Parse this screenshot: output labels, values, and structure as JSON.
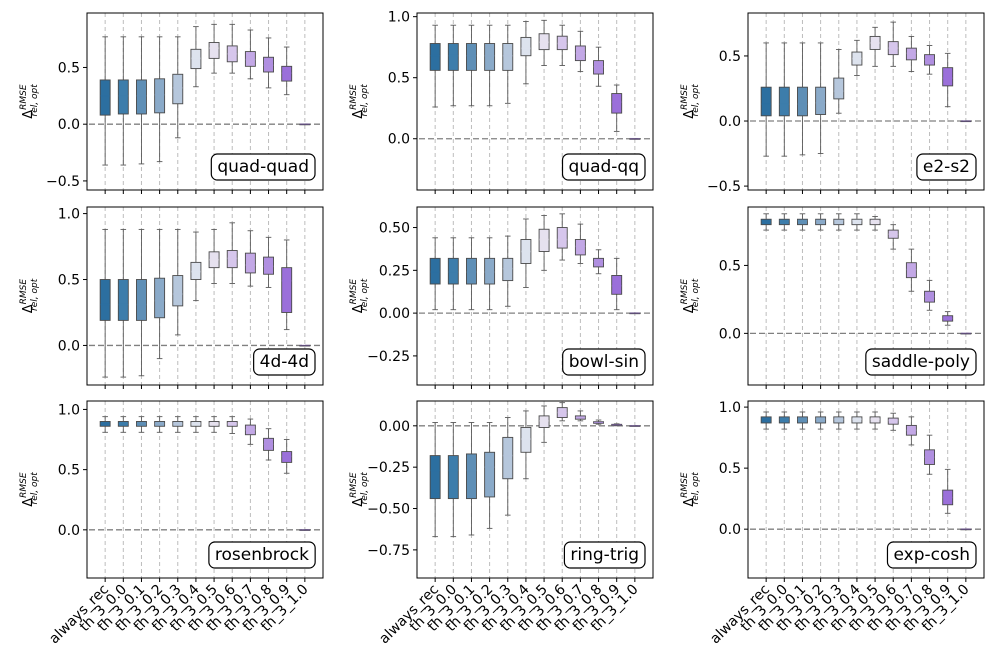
{
  "figure": {
    "ylabel_base": "Δ",
    "ylabel_sup": "RMSE",
    "ylabel_sub": "rel, opt",
    "categories": [
      "always_rec",
      "th_3_0.0",
      "th_3_0.1",
      "th_3_0.2",
      "th_3_0.3",
      "th_3_0.4",
      "th_3_0.5",
      "th_3_0.6",
      "th_3_0.7",
      "th_3_0.8",
      "th_3_0.9",
      "th_3_1.0"
    ],
    "box_colors": [
      "#2c6fa0",
      "#3d7dab",
      "#5f8fb6",
      "#8aaac9",
      "#b6c7dc",
      "#dde3ee",
      "#e6e1ef",
      "#d6c6ec",
      "#c3a8e6",
      "#b08fe0",
      "#9b70da",
      "#8a58d4"
    ]
  },
  "chart_data": [
    {
      "type": "box",
      "title": "quad-quad",
      "ylim": [
        -0.58,
        0.98
      ],
      "yticks": [
        -0.5,
        0.0,
        0.5
      ],
      "ytick_labels": [
        "−0.5",
        "0.0",
        "0.5"
      ],
      "boxes": [
        {
          "whislo": -0.36,
          "q1": 0.08,
          "med": 0.25,
          "q3": 0.39,
          "whishi": 0.77
        },
        {
          "whislo": -0.36,
          "q1": 0.09,
          "med": 0.25,
          "q3": 0.39,
          "whishi": 0.77
        },
        {
          "whislo": -0.35,
          "q1": 0.09,
          "med": 0.25,
          "q3": 0.39,
          "whishi": 0.77
        },
        {
          "whislo": -0.33,
          "q1": 0.1,
          "med": 0.26,
          "q3": 0.4,
          "whishi": 0.77
        },
        {
          "whislo": -0.12,
          "q1": 0.18,
          "med": 0.32,
          "q3": 0.44,
          "whishi": 0.77
        },
        {
          "whislo": 0.33,
          "q1": 0.49,
          "med": 0.58,
          "q3": 0.66,
          "whishi": 0.86
        },
        {
          "whislo": 0.45,
          "q1": 0.58,
          "med": 0.67,
          "q3": 0.72,
          "whishi": 0.88
        },
        {
          "whislo": 0.45,
          "q1": 0.55,
          "med": 0.62,
          "q3": 0.69,
          "whishi": 0.88
        },
        {
          "whislo": 0.4,
          "q1": 0.51,
          "med": 0.57,
          "q3": 0.64,
          "whishi": 0.83
        },
        {
          "whislo": 0.32,
          "q1": 0.46,
          "med": 0.52,
          "q3": 0.59,
          "whishi": 0.76
        },
        {
          "whislo": 0.26,
          "q1": 0.38,
          "med": 0.45,
          "q3": 0.51,
          "whishi": 0.68
        },
        {
          "whislo": 0.0,
          "q1": 0.0,
          "med": 0.0,
          "q3": 0.0,
          "whishi": 0.0
        }
      ]
    },
    {
      "type": "box",
      "title": "quad-qq",
      "ylim": [
        -0.42,
        1.03
      ],
      "yticks": [
        0.0,
        0.5,
        1.0
      ],
      "ytick_labels": [
        "0.0",
        "0.5",
        "1.0"
      ],
      "boxes": [
        {
          "whislo": 0.26,
          "q1": 0.56,
          "med": 0.68,
          "q3": 0.78,
          "whishi": 0.93
        },
        {
          "whislo": 0.27,
          "q1": 0.56,
          "med": 0.68,
          "q3": 0.78,
          "whishi": 0.93
        },
        {
          "whislo": 0.27,
          "q1": 0.56,
          "med": 0.68,
          "q3": 0.78,
          "whishi": 0.93
        },
        {
          "whislo": 0.27,
          "q1": 0.56,
          "med": 0.68,
          "q3": 0.78,
          "whishi": 0.93
        },
        {
          "whislo": 0.29,
          "q1": 0.56,
          "med": 0.68,
          "q3": 0.78,
          "whishi": 0.93
        },
        {
          "whislo": 0.45,
          "q1": 0.68,
          "med": 0.74,
          "q3": 0.83,
          "whishi": 0.96
        },
        {
          "whislo": 0.6,
          "q1": 0.73,
          "med": 0.79,
          "q3": 0.86,
          "whishi": 0.97
        },
        {
          "whislo": 0.6,
          "q1": 0.73,
          "med": 0.78,
          "q3": 0.84,
          "whishi": 0.93
        },
        {
          "whislo": 0.55,
          "q1": 0.64,
          "med": 0.7,
          "q3": 0.76,
          "whishi": 0.88
        },
        {
          "whislo": 0.43,
          "q1": 0.53,
          "med": 0.59,
          "q3": 0.64,
          "whishi": 0.75
        },
        {
          "whislo": 0.06,
          "q1": 0.21,
          "med": 0.3,
          "q3": 0.37,
          "whishi": 0.44
        },
        {
          "whislo": 0.0,
          "q1": 0.0,
          "med": 0.0,
          "q3": 0.0,
          "whishi": 0.0
        }
      ]
    },
    {
      "type": "box",
      "title": "e2-s2",
      "ylim": [
        -0.53,
        0.83
      ],
      "yticks": [
        -0.5,
        0.0,
        0.5
      ],
      "ytick_labels": [
        "−0.5",
        "0.0",
        "0.5"
      ],
      "boxes": [
        {
          "whislo": -0.27,
          "q1": 0.04,
          "med": 0.13,
          "q3": 0.26,
          "whishi": 0.6
        },
        {
          "whislo": -0.27,
          "q1": 0.04,
          "med": 0.13,
          "q3": 0.26,
          "whishi": 0.6
        },
        {
          "whislo": -0.26,
          "q1": 0.04,
          "med": 0.13,
          "q3": 0.26,
          "whishi": 0.6
        },
        {
          "whislo": -0.25,
          "q1": 0.05,
          "med": 0.14,
          "q3": 0.26,
          "whishi": 0.6
        },
        {
          "whislo": 0.06,
          "q1": 0.17,
          "med": 0.23,
          "q3": 0.33,
          "whishi": 0.55
        },
        {
          "whislo": 0.35,
          "q1": 0.43,
          "med": 0.48,
          "q3": 0.53,
          "whishi": 0.62
        },
        {
          "whislo": 0.42,
          "q1": 0.55,
          "med": 0.6,
          "q3": 0.65,
          "whishi": 0.72
        },
        {
          "whislo": 0.42,
          "q1": 0.51,
          "med": 0.56,
          "q3": 0.61,
          "whishi": 0.76
        },
        {
          "whislo": 0.38,
          "q1": 0.47,
          "med": 0.52,
          "q3": 0.56,
          "whishi": 0.65
        },
        {
          "whislo": 0.36,
          "q1": 0.43,
          "med": 0.47,
          "q3": 0.51,
          "whishi": 0.58
        },
        {
          "whislo": 0.11,
          "q1": 0.27,
          "med": 0.33,
          "q3": 0.41,
          "whishi": 0.52
        },
        {
          "whislo": 0.0,
          "q1": 0.0,
          "med": 0.0,
          "q3": 0.0,
          "whishi": 0.0
        }
      ]
    },
    {
      "type": "box",
      "title": "4d-4d",
      "ylim": [
        -0.3,
        1.05
      ],
      "yticks": [
        0.0,
        0.5,
        1.0
      ],
      "ytick_labels": [
        "0.0",
        "0.5",
        "1.0"
      ],
      "boxes": [
        {
          "whislo": -0.24,
          "q1": 0.19,
          "med": 0.31,
          "q3": 0.5,
          "whishi": 0.88
        },
        {
          "whislo": -0.24,
          "q1": 0.19,
          "med": 0.31,
          "q3": 0.5,
          "whishi": 0.88
        },
        {
          "whislo": -0.23,
          "q1": 0.19,
          "med": 0.31,
          "q3": 0.5,
          "whishi": 0.88
        },
        {
          "whislo": -0.1,
          "q1": 0.21,
          "med": 0.34,
          "q3": 0.51,
          "whishi": 0.88
        },
        {
          "whislo": 0.08,
          "q1": 0.3,
          "med": 0.39,
          "q3": 0.53,
          "whishi": 0.88
        },
        {
          "whislo": 0.34,
          "q1": 0.5,
          "med": 0.56,
          "q3": 0.63,
          "whishi": 0.86
        },
        {
          "whislo": 0.47,
          "q1": 0.59,
          "med": 0.65,
          "q3": 0.71,
          "whishi": 0.88
        },
        {
          "whislo": 0.47,
          "q1": 0.59,
          "med": 0.66,
          "q3": 0.72,
          "whishi": 0.93
        },
        {
          "whislo": 0.45,
          "q1": 0.55,
          "med": 0.61,
          "q3": 0.7,
          "whishi": 0.87
        },
        {
          "whislo": 0.44,
          "q1": 0.54,
          "med": 0.6,
          "q3": 0.67,
          "whishi": 0.82
        },
        {
          "whislo": 0.12,
          "q1": 0.25,
          "med": 0.49,
          "q3": 0.59,
          "whishi": 0.8
        },
        {
          "whislo": 0.0,
          "q1": 0.0,
          "med": 0.0,
          "q3": 0.0,
          "whishi": 0.0
        }
      ]
    },
    {
      "type": "box",
      "title": "bowl-sin",
      "ylim": [
        -0.42,
        0.62
      ],
      "yticks": [
        -0.25,
        0.0,
        0.25,
        0.5
      ],
      "ytick_labels": [
        "−0.25",
        "0.00",
        "0.25",
        "0.50"
      ],
      "boxes": [
        {
          "whislo": 0.02,
          "q1": 0.17,
          "med": 0.24,
          "q3": 0.32,
          "whishi": 0.44
        },
        {
          "whislo": 0.02,
          "q1": 0.17,
          "med": 0.24,
          "q3": 0.32,
          "whishi": 0.44
        },
        {
          "whislo": 0.02,
          "q1": 0.17,
          "med": 0.24,
          "q3": 0.32,
          "whishi": 0.44
        },
        {
          "whislo": 0.02,
          "q1": 0.17,
          "med": 0.24,
          "q3": 0.32,
          "whishi": 0.44
        },
        {
          "whislo": 0.04,
          "q1": 0.19,
          "med": 0.26,
          "q3": 0.32,
          "whishi": 0.45
        },
        {
          "whislo": 0.15,
          "q1": 0.29,
          "med": 0.36,
          "q3": 0.43,
          "whishi": 0.55
        },
        {
          "whislo": 0.25,
          "q1": 0.36,
          "med": 0.43,
          "q3": 0.49,
          "whishi": 0.57
        },
        {
          "whislo": 0.31,
          "q1": 0.38,
          "med": 0.43,
          "q3": 0.5,
          "whishi": 0.58
        },
        {
          "whislo": 0.29,
          "q1": 0.34,
          "med": 0.39,
          "q3": 0.43,
          "whishi": 0.52
        },
        {
          "whislo": 0.23,
          "q1": 0.27,
          "med": 0.3,
          "q3": 0.32,
          "whishi": 0.37
        },
        {
          "whislo": 0.02,
          "q1": 0.11,
          "med": 0.16,
          "q3": 0.22,
          "whishi": 0.32
        },
        {
          "whislo": 0.0,
          "q1": 0.0,
          "med": 0.0,
          "q3": 0.0,
          "whishi": 0.0
        }
      ]
    },
    {
      "type": "box",
      "title": "saddle-poly",
      "ylim": [
        -0.38,
        0.93
      ],
      "yticks": [
        0.0,
        0.5
      ],
      "ytick_labels": [
        "0.0",
        "0.5"
      ],
      "boxes": [
        {
          "whislo": 0.76,
          "q1": 0.8,
          "med": 0.83,
          "q3": 0.84,
          "whishi": 0.88
        },
        {
          "whislo": 0.76,
          "q1": 0.8,
          "med": 0.83,
          "q3": 0.84,
          "whishi": 0.88
        },
        {
          "whislo": 0.76,
          "q1": 0.8,
          "med": 0.83,
          "q3": 0.84,
          "whishi": 0.88
        },
        {
          "whislo": 0.76,
          "q1": 0.8,
          "med": 0.83,
          "q3": 0.84,
          "whishi": 0.88
        },
        {
          "whislo": 0.76,
          "q1": 0.8,
          "med": 0.83,
          "q3": 0.84,
          "whishi": 0.88
        },
        {
          "whislo": 0.76,
          "q1": 0.8,
          "med": 0.83,
          "q3": 0.84,
          "whishi": 0.88
        },
        {
          "whislo": 0.76,
          "q1": 0.8,
          "med": 0.82,
          "q3": 0.84,
          "whishi": 0.86
        },
        {
          "whislo": 0.62,
          "q1": 0.7,
          "med": 0.73,
          "q3": 0.76,
          "whishi": 0.8
        },
        {
          "whislo": 0.31,
          "q1": 0.41,
          "med": 0.47,
          "q3": 0.52,
          "whishi": 0.62
        },
        {
          "whislo": 0.17,
          "q1": 0.23,
          "med": 0.27,
          "q3": 0.31,
          "whishi": 0.39
        },
        {
          "whislo": 0.06,
          "q1": 0.09,
          "med": 0.11,
          "q3": 0.13,
          "whishi": 0.16
        },
        {
          "whislo": 0.0,
          "q1": 0.0,
          "med": 0.0,
          "q3": 0.0,
          "whishi": 0.0
        }
      ]
    },
    {
      "type": "box",
      "title": "rosenbrock",
      "ylim": [
        -0.4,
        1.07
      ],
      "yticks": [
        0.0,
        0.5,
        1.0
      ],
      "ytick_labels": [
        "0.0",
        "0.5",
        "1.0"
      ],
      "boxes": [
        {
          "whislo": 0.81,
          "q1": 0.86,
          "med": 0.88,
          "q3": 0.9,
          "whishi": 0.94
        },
        {
          "whislo": 0.81,
          "q1": 0.86,
          "med": 0.88,
          "q3": 0.9,
          "whishi": 0.94
        },
        {
          "whislo": 0.81,
          "q1": 0.86,
          "med": 0.88,
          "q3": 0.9,
          "whishi": 0.94
        },
        {
          "whislo": 0.81,
          "q1": 0.86,
          "med": 0.88,
          "q3": 0.9,
          "whishi": 0.94
        },
        {
          "whislo": 0.81,
          "q1": 0.86,
          "med": 0.88,
          "q3": 0.9,
          "whishi": 0.94
        },
        {
          "whislo": 0.81,
          "q1": 0.86,
          "med": 0.88,
          "q3": 0.9,
          "whishi": 0.94
        },
        {
          "whislo": 0.81,
          "q1": 0.86,
          "med": 0.88,
          "q3": 0.9,
          "whishi": 0.94
        },
        {
          "whislo": 0.8,
          "q1": 0.86,
          "med": 0.88,
          "q3": 0.9,
          "whishi": 0.94
        },
        {
          "whislo": 0.71,
          "q1": 0.79,
          "med": 0.83,
          "q3": 0.87,
          "whishi": 0.92
        },
        {
          "whislo": 0.58,
          "q1": 0.66,
          "med": 0.71,
          "q3": 0.76,
          "whishi": 0.84
        },
        {
          "whislo": 0.47,
          "q1": 0.56,
          "med": 0.61,
          "q3": 0.65,
          "whishi": 0.75
        },
        {
          "whislo": 0.0,
          "q1": 0.0,
          "med": 0.0,
          "q3": 0.0,
          "whishi": 0.0
        }
      ]
    },
    {
      "type": "box",
      "title": "ring-trig",
      "ylim": [
        -0.92,
        0.15
      ],
      "yticks": [
        -0.75,
        -0.5,
        -0.25,
        0.0
      ],
      "ytick_labels": [
        "−0.75",
        "−0.50",
        "−0.25",
        "0.00"
      ],
      "boxes": [
        {
          "whislo": -0.67,
          "q1": -0.44,
          "med": -0.27,
          "q3": -0.18,
          "whishi": 0.02
        },
        {
          "whislo": -0.67,
          "q1": -0.44,
          "med": -0.27,
          "q3": -0.18,
          "whishi": 0.02
        },
        {
          "whislo": -0.66,
          "q1": -0.44,
          "med": -0.27,
          "q3": -0.17,
          "whishi": 0.02
        },
        {
          "whislo": -0.62,
          "q1": -0.43,
          "med": -0.25,
          "q3": -0.16,
          "whishi": 0.02
        },
        {
          "whislo": -0.54,
          "q1": -0.32,
          "med": -0.18,
          "q3": -0.07,
          "whishi": 0.05
        },
        {
          "whislo": -0.32,
          "q1": -0.16,
          "med": -0.08,
          "q3": -0.01,
          "whishi": 0.09
        },
        {
          "whislo": -0.1,
          "q1": -0.01,
          "med": 0.03,
          "q3": 0.06,
          "whishi": 0.12
        },
        {
          "whislo": 0.03,
          "q1": 0.05,
          "med": 0.08,
          "q3": 0.11,
          "whishi": 0.14
        },
        {
          "whislo": 0.03,
          "q1": 0.04,
          "med": 0.05,
          "q3": 0.06,
          "whishi": 0.09
        },
        {
          "whislo": 0.01,
          "q1": 0.015,
          "med": 0.02,
          "q3": 0.025,
          "whishi": 0.035
        },
        {
          "whislo": 0.0,
          "q1": 0.003,
          "med": 0.006,
          "q3": 0.009,
          "whishi": 0.012
        },
        {
          "whislo": 0.0,
          "q1": 0.0,
          "med": 0.0,
          "q3": 0.0,
          "whishi": 0.0
        }
      ]
    },
    {
      "type": "box",
      "title": "exp-cosh",
      "ylim": [
        -0.4,
        1.05
      ],
      "yticks": [
        0.0,
        0.5,
        1.0
      ],
      "ytick_labels": [
        "0.0",
        "0.5",
        "1.0"
      ],
      "boxes": [
        {
          "whislo": 0.82,
          "q1": 0.87,
          "med": 0.9,
          "q3": 0.92,
          "whishi": 0.96
        },
        {
          "whislo": 0.82,
          "q1": 0.87,
          "med": 0.9,
          "q3": 0.92,
          "whishi": 0.96
        },
        {
          "whislo": 0.82,
          "q1": 0.87,
          "med": 0.9,
          "q3": 0.92,
          "whishi": 0.96
        },
        {
          "whislo": 0.82,
          "q1": 0.87,
          "med": 0.9,
          "q3": 0.92,
          "whishi": 0.96
        },
        {
          "whislo": 0.82,
          "q1": 0.87,
          "med": 0.9,
          "q3": 0.92,
          "whishi": 0.96
        },
        {
          "whislo": 0.82,
          "q1": 0.87,
          "med": 0.9,
          "q3": 0.92,
          "whishi": 0.96
        },
        {
          "whislo": 0.82,
          "q1": 0.87,
          "med": 0.9,
          "q3": 0.92,
          "whishi": 0.96
        },
        {
          "whislo": 0.81,
          "q1": 0.86,
          "med": 0.89,
          "q3": 0.91,
          "whishi": 0.95
        },
        {
          "whislo": 0.69,
          "q1": 0.77,
          "med": 0.81,
          "q3": 0.85,
          "whishi": 0.92
        },
        {
          "whislo": 0.45,
          "q1": 0.53,
          "med": 0.59,
          "q3": 0.65,
          "whishi": 0.77
        },
        {
          "whislo": 0.13,
          "q1": 0.2,
          "med": 0.26,
          "q3": 0.32,
          "whishi": 0.49
        },
        {
          "whislo": 0.0,
          "q1": 0.0,
          "med": 0.0,
          "q3": 0.0,
          "whishi": 0.0
        }
      ]
    }
  ]
}
